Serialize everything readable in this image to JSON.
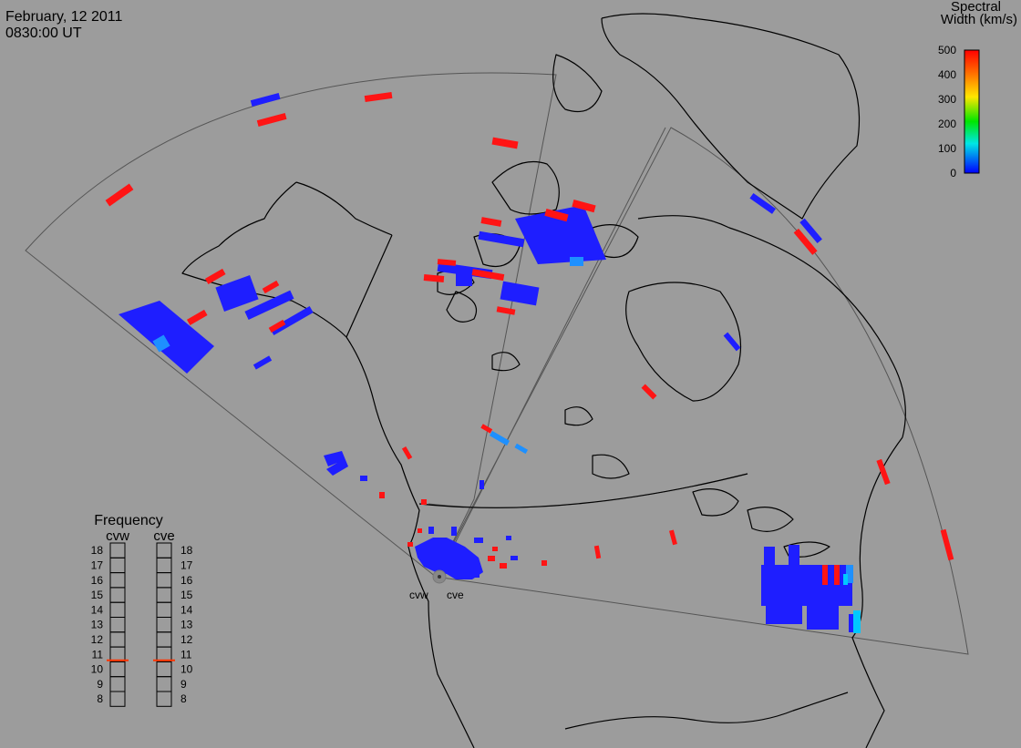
{
  "header": {
    "date": "February, 12 2011",
    "time": "0830:00 UT"
  },
  "colorbar": {
    "title_line1": "Spectral",
    "title_line2": "Width (km/s)",
    "ticks": [
      "500",
      "400",
      "300",
      "200",
      "100",
      "0"
    ],
    "colors": [
      "#ff0000",
      "#ff8c00",
      "#ffe600",
      "#00e600",
      "#00e6e6",
      "#0000ff"
    ]
  },
  "radars": [
    {
      "code": "cvw"
    },
    {
      "code": "cve"
    }
  ],
  "frequency": {
    "title": "Frequency",
    "levels": [
      "18",
      "17",
      "16",
      "15",
      "14",
      "13",
      "12",
      "11",
      "10",
      "9",
      "8"
    ],
    "cvw_value": 10.6,
    "cve_value": 10.6,
    "marker_color": "#ff3300"
  },
  "colors": {
    "background": "#9c9c9c",
    "coast": "#000000",
    "blue": "#1e1eff",
    "red": "#ff1414",
    "light_blue": "#1e90ff",
    "cyan": "#00c8ff"
  }
}
